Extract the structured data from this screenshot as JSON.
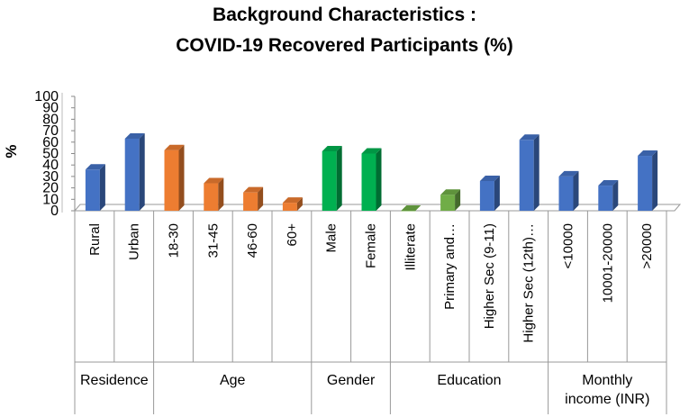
{
  "chart_data": {
    "type": "bar",
    "title_lines": [
      "Background Characteristics :",
      "COVID-19 Recovered Participants (%)"
    ],
    "xlabel": "",
    "ylabel": "%",
    "ylim": [
      0,
      100
    ],
    "yticks": [
      0,
      10,
      20,
      30,
      40,
      50,
      60,
      70,
      80,
      90,
      100
    ],
    "categories": [
      "Rural",
      "Urban",
      "18-30",
      "31-45",
      "46-60",
      "60+",
      "Male",
      "Female",
      "Illiterate",
      "Primary and…",
      "Higher Sec (9-11)",
      "Higher Sec (12th)…",
      "<10000",
      "10001-20000",
      ">20000"
    ],
    "values": [
      36,
      63,
      53,
      24,
      16,
      7,
      52,
      50,
      0,
      14,
      26,
      62,
      30,
      22,
      48
    ],
    "groups": [
      {
        "label": [
          "Residence"
        ],
        "start": 0,
        "end": 1,
        "color": "#4472C4"
      },
      {
        "label": [
          "Age"
        ],
        "start": 2,
        "end": 5,
        "color": "#ED7D31"
      },
      {
        "label": [
          "Gender"
        ],
        "start": 6,
        "end": 7,
        "color": "#00B050"
      },
      {
        "label": [
          "Education"
        ],
        "start": 8,
        "end": 11,
        "color": "#4472C4"
      },
      {
        "label": [
          "Monthly",
          "income (INR)"
        ],
        "start": 12,
        "end": 14,
        "color": "#4472C4"
      }
    ],
    "education_low_color": "#70AD47",
    "grid": false,
    "legend": "none"
  }
}
